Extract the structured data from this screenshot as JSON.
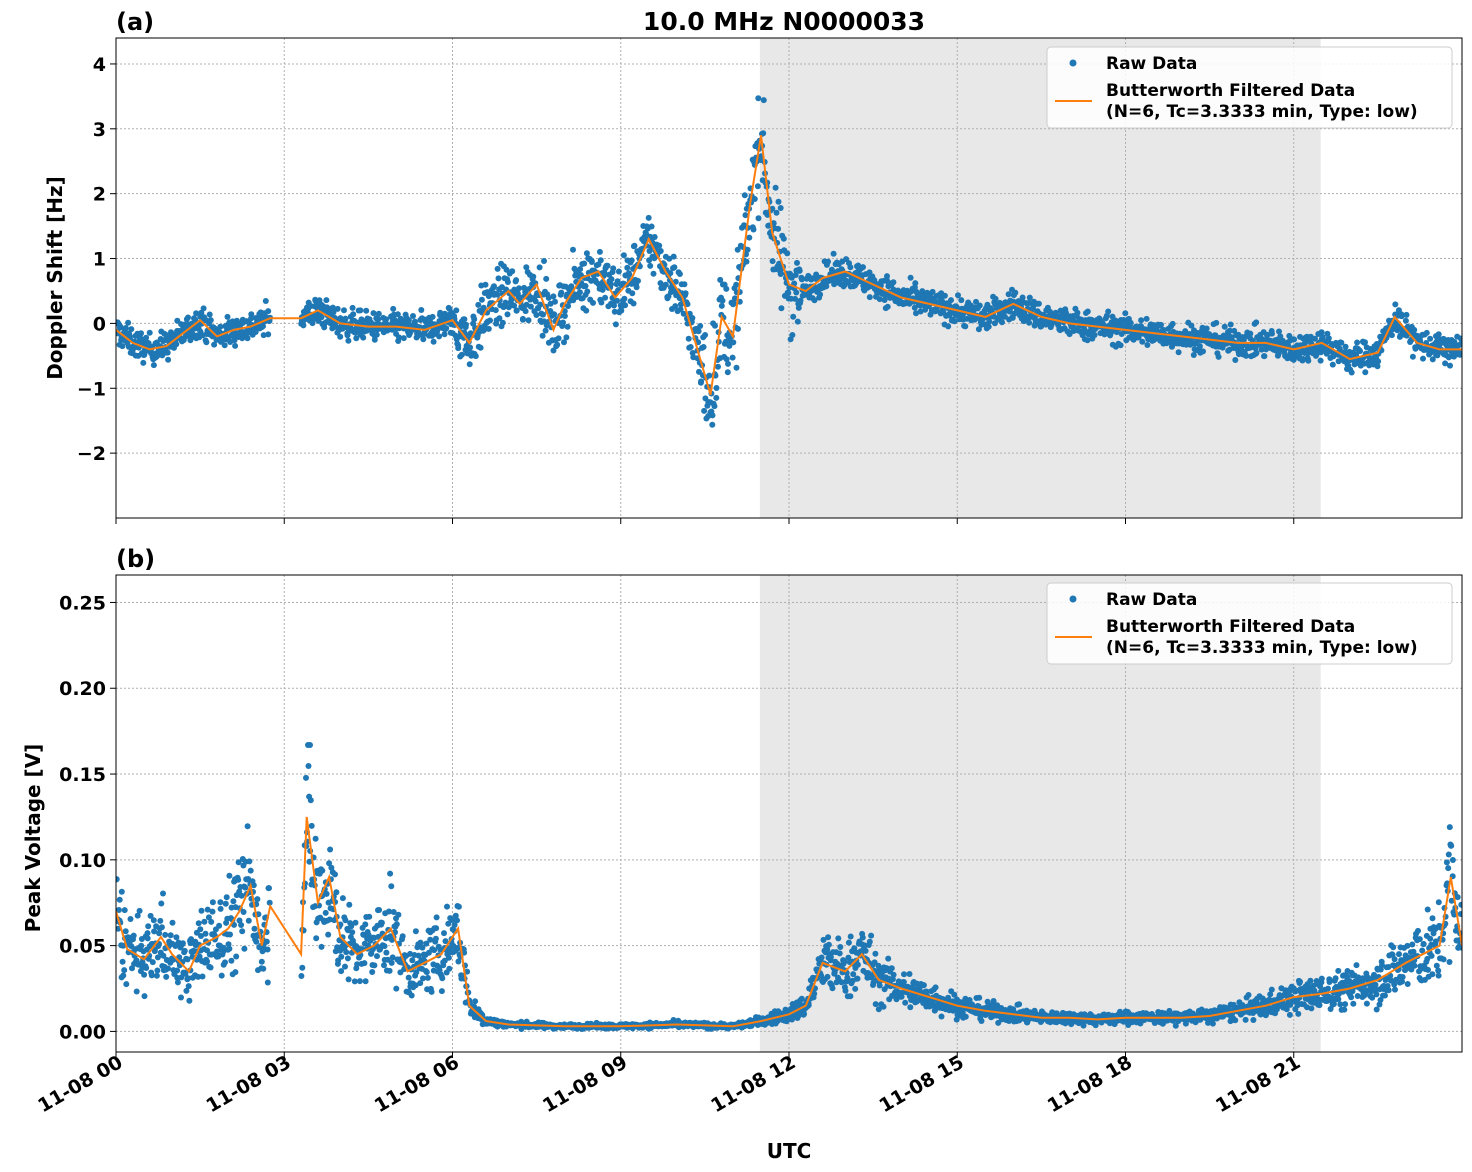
{
  "title": "10.0 MHz N0000033",
  "xlabel": "UTC",
  "colors": {
    "raw": "#1f77b4",
    "filtered": "#ff7f0e",
    "shade": "#e8e8e8",
    "grid": "#b0b0b0"
  },
  "legend": {
    "raw": "Raw Data",
    "filtered_line1": "Butterworth Filtered Data",
    "filtered_line2": "(N=6, Tc=3.3333 min, Type: low)"
  },
  "x_ticks": [
    "11-08 00",
    "11-08 03",
    "11-08 06",
    "11-08 09",
    "11-08 12",
    "11-08 15",
    "11-08 18",
    "11-08 21"
  ],
  "chart_data": [
    {
      "type": "scatter",
      "panel": "(a)",
      "ylabel": "Doppler Shift [Hz]",
      "yticks": [
        "4",
        "3",
        "2",
        "1",
        "0",
        "−1",
        "−2"
      ],
      "ylim": [
        -3.0,
        4.4
      ],
      "xlim_hours": [
        0,
        24
      ],
      "shaded_interval_hours": [
        11.48,
        21.48
      ],
      "data_gap_hours": [
        2.75,
        3.3
      ],
      "series": [
        {
          "name": "Raw Data",
          "kind": "scatter"
        },
        {
          "name": "Butterworth Filtered Data (N=6, Tc=3.3333 min, Type: low)",
          "kind": "line",
          "x": [
            0.0,
            0.3,
            0.6,
            0.9,
            1.2,
            1.5,
            1.8,
            2.1,
            2.4,
            2.75,
            3.3,
            3.6,
            4.0,
            4.5,
            5.0,
            5.5,
            6.0,
            6.3,
            6.6,
            7.0,
            7.2,
            7.5,
            7.8,
            8.0,
            8.3,
            8.6,
            8.9,
            9.2,
            9.5,
            9.8,
            10.1,
            10.4,
            10.6,
            10.8,
            11.0,
            11.3,
            11.5,
            11.7,
            12.0,
            12.3,
            12.6,
            13.0,
            13.5,
            14.0,
            14.5,
            15.0,
            15.5,
            16.0,
            16.5,
            17.0,
            17.5,
            18.0,
            18.5,
            19.0,
            19.5,
            20.0,
            20.5,
            21.0,
            21.5,
            22.0,
            22.5,
            22.8,
            23.2,
            23.6,
            24.0
          ],
          "y": [
            -0.1,
            -0.3,
            -0.4,
            -0.35,
            -0.15,
            0.05,
            -0.2,
            -0.1,
            -0.05,
            0.08,
            0.08,
            0.2,
            0.0,
            -0.05,
            -0.05,
            -0.1,
            0.05,
            -0.3,
            0.2,
            0.5,
            0.3,
            0.6,
            -0.1,
            0.3,
            0.7,
            0.8,
            0.4,
            0.7,
            1.3,
            0.8,
            0.4,
            -0.5,
            -1.1,
            0.1,
            -0.2,
            1.8,
            2.9,
            1.4,
            0.6,
            0.5,
            0.7,
            0.8,
            0.6,
            0.4,
            0.3,
            0.2,
            0.1,
            0.3,
            0.1,
            0.0,
            -0.05,
            -0.1,
            -0.15,
            -0.2,
            -0.25,
            -0.3,
            -0.3,
            -0.4,
            -0.3,
            -0.55,
            -0.45,
            0.1,
            -0.3,
            -0.4,
            -0.4
          ]
        }
      ]
    },
    {
      "type": "scatter",
      "panel": "(b)",
      "ylabel": "Peak Voltage [V]",
      "yticks": [
        "0.25",
        "0.20",
        "0.15",
        "0.10",
        "0.05",
        "0.00"
      ],
      "ylim": [
        -0.012,
        0.266
      ],
      "xlim_hours": [
        0,
        24
      ],
      "shaded_interval_hours": [
        11.48,
        21.48
      ],
      "data_gap_hours": [
        2.75,
        3.3
      ],
      "series": [
        {
          "name": "Raw Data",
          "kind": "scatter"
        },
        {
          "name": "Butterworth Filtered Data (N=6, Tc=3.3333 min, Type: low)",
          "kind": "line",
          "x": [
            0.0,
            0.2,
            0.5,
            0.8,
            1.0,
            1.3,
            1.5,
            1.8,
            2.0,
            2.2,
            2.4,
            2.6,
            2.75,
            3.3,
            3.4,
            3.6,
            3.8,
            4.0,
            4.3,
            4.6,
            4.9,
            5.2,
            5.5,
            5.8,
            6.1,
            6.3,
            6.6,
            7.0,
            8.0,
            9.0,
            10.0,
            11.0,
            11.5,
            12.0,
            12.3,
            12.6,
            13.0,
            13.3,
            13.6,
            14.0,
            14.5,
            15.0,
            15.5,
            16.0,
            16.5,
            17.0,
            17.5,
            18.0,
            18.5,
            19.0,
            19.5,
            20.0,
            20.5,
            21.0,
            21.5,
            22.0,
            22.5,
            23.0,
            23.3,
            23.6,
            23.8,
            24.0
          ],
          "y": [
            0.07,
            0.048,
            0.042,
            0.055,
            0.045,
            0.035,
            0.05,
            0.055,
            0.06,
            0.07,
            0.085,
            0.05,
            0.073,
            0.045,
            0.125,
            0.075,
            0.09,
            0.055,
            0.045,
            0.05,
            0.06,
            0.035,
            0.04,
            0.045,
            0.06,
            0.015,
            0.006,
            0.004,
            0.003,
            0.003,
            0.004,
            0.003,
            0.006,
            0.01,
            0.015,
            0.04,
            0.035,
            0.045,
            0.03,
            0.025,
            0.02,
            0.015,
            0.012,
            0.01,
            0.008,
            0.008,
            0.007,
            0.008,
            0.008,
            0.008,
            0.009,
            0.012,
            0.015,
            0.02,
            0.022,
            0.025,
            0.03,
            0.04,
            0.045,
            0.05,
            0.09,
            0.05
          ]
        }
      ]
    }
  ]
}
